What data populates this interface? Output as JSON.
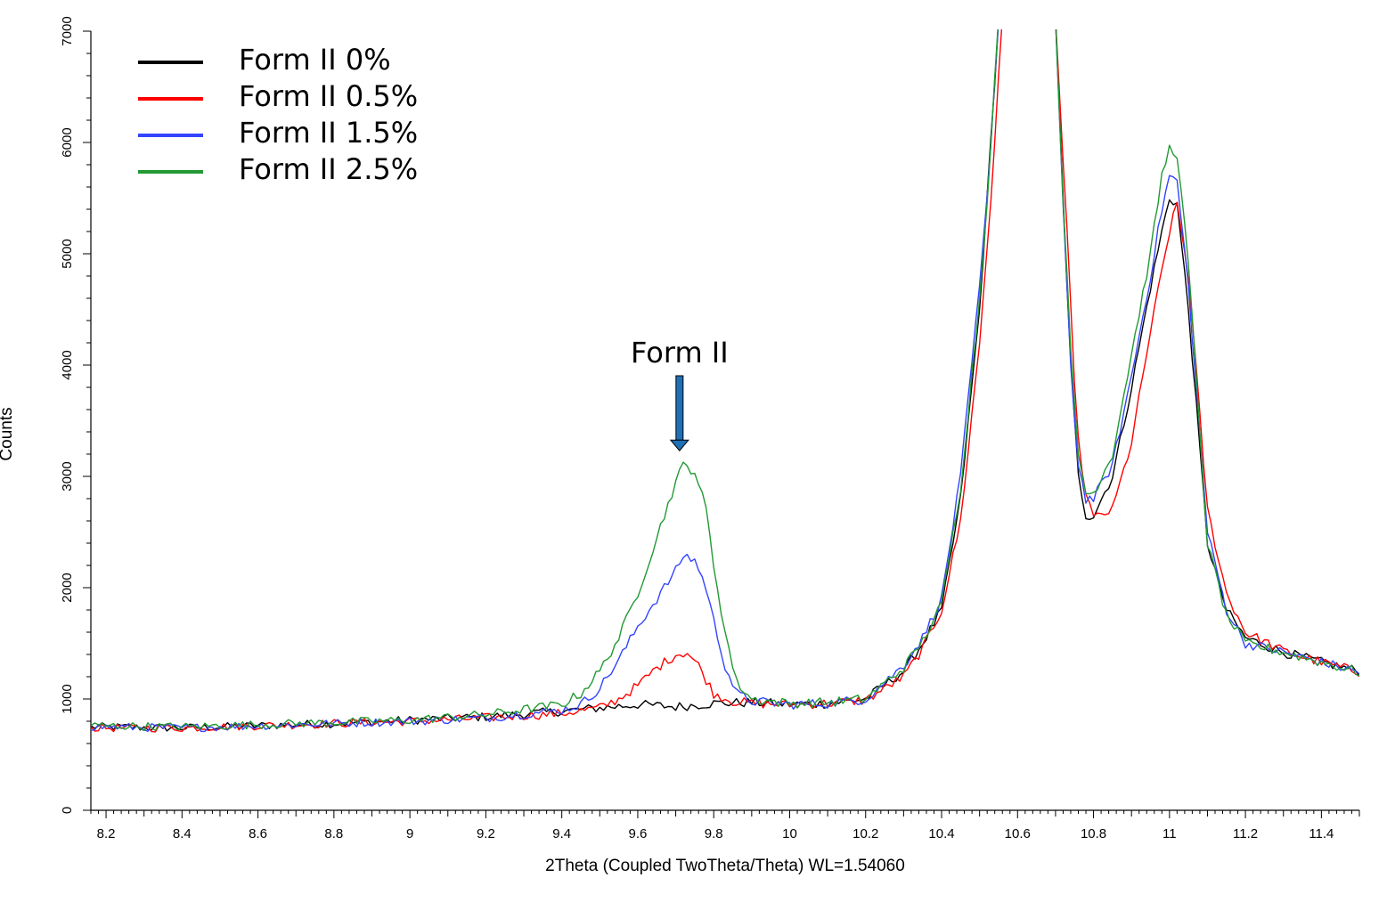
{
  "chart_data": {
    "type": "line",
    "xlabel": "2Theta (Coupled TwoTheta/Theta) WL=1.54060",
    "ylabel": "Counts",
    "xlim": [
      8.16,
      11.5
    ],
    "ylim": [
      0,
      7000
    ],
    "x_ticks": [
      8.2,
      8.4,
      8.6,
      8.8,
      9,
      9.2,
      9.4,
      9.6,
      9.8,
      10,
      10.2,
      10.4,
      10.6,
      10.8,
      11,
      11.2,
      11.4
    ],
    "y_ticks": [
      0,
      1000,
      2000,
      3000,
      4000,
      5000,
      6000,
      7000
    ],
    "grid": false,
    "legend_position": "top-left",
    "series": [
      {
        "name": "Form II 0%",
        "color": "#000000",
        "x": [
          8.16,
          8.4,
          8.8,
          9.0,
          9.2,
          9.4,
          9.5,
          9.6,
          9.7,
          9.8,
          9.9,
          10.0,
          10.1,
          10.2,
          10.3,
          10.35,
          10.4,
          10.45,
          10.5,
          10.52,
          10.55,
          10.6,
          10.65,
          10.7,
          10.72,
          10.74,
          10.76,
          10.78,
          10.8,
          10.85,
          10.9,
          10.95,
          10.98,
          11.0,
          11.02,
          11.05,
          11.1,
          11.15,
          11.2,
          11.3,
          11.4,
          11.5
        ],
        "y": [
          750,
          740,
          780,
          810,
          840,
          890,
          920,
          950,
          930,
          960,
          970,
          950,
          960,
          1000,
          1250,
          1500,
          1800,
          2800,
          4500,
          5500,
          7100,
          7100,
          7100,
          7100,
          5500,
          4000,
          3000,
          2650,
          2650,
          3000,
          3800,
          4700,
          5200,
          5500,
          5450,
          4500,
          2400,
          1800,
          1550,
          1420,
          1330,
          1250
        ]
      },
      {
        "name": "Form II 0.5%",
        "color": "#ff0000",
        "x": [
          8.16,
          8.4,
          8.8,
          9.0,
          9.2,
          9.4,
          9.5,
          9.55,
          9.6,
          9.65,
          9.7,
          9.73,
          9.76,
          9.8,
          9.85,
          9.9,
          10.0,
          10.1,
          10.2,
          10.3,
          10.35,
          10.4,
          10.45,
          10.5,
          10.53,
          10.56,
          10.6,
          10.65,
          10.7,
          10.73,
          10.75,
          10.77,
          10.8,
          10.85,
          10.9,
          10.95,
          11.0,
          11.02,
          11.05,
          11.1,
          11.15,
          11.2,
          11.3,
          11.4,
          11.5
        ],
        "y": [
          740,
          740,
          780,
          800,
          830,
          870,
          920,
          1000,
          1120,
          1280,
          1400,
          1420,
          1300,
          1050,
          980,
          960,
          950,
          960,
          990,
          1200,
          1450,
          1800,
          2600,
          4200,
          5500,
          7100,
          7100,
          7100,
          7100,
          5200,
          3800,
          3000,
          2620,
          2700,
          3300,
          4300,
          5200,
          5450,
          4800,
          2700,
          1950,
          1600,
          1430,
          1330,
          1240
        ]
      },
      {
        "name": "Form II 1.5%",
        "color": "#3344ff",
        "x": [
          8.16,
          8.4,
          8.8,
          9.0,
          9.2,
          9.4,
          9.45,
          9.5,
          9.55,
          9.6,
          9.65,
          9.7,
          9.72,
          9.75,
          9.78,
          9.8,
          9.83,
          9.86,
          9.9,
          10.0,
          10.1,
          10.2,
          10.3,
          10.35,
          10.4,
          10.45,
          10.5,
          10.52,
          10.55,
          10.6,
          10.65,
          10.7,
          10.72,
          10.74,
          10.76,
          10.78,
          10.8,
          10.85,
          10.9,
          10.95,
          10.98,
          11.0,
          11.02,
          11.05,
          11.1,
          11.15,
          11.2,
          11.3,
          11.4,
          11.5
        ],
        "y": [
          750,
          740,
          780,
          800,
          830,
          900,
          950,
          1100,
          1350,
          1650,
          1900,
          2150,
          2290,
          2250,
          2000,
          1700,
          1300,
          1050,
          980,
          950,
          960,
          1000,
          1300,
          1550,
          1900,
          3000,
          4700,
          5500,
          7100,
          7100,
          7100,
          7100,
          5400,
          4000,
          3100,
          2800,
          2800,
          3100,
          3900,
          4800,
          5400,
          5700,
          5650,
          4700,
          2500,
          1800,
          1500,
          1420,
          1330,
          1240
        ]
      },
      {
        "name": "Form II 2.5%",
        "color": "#229933",
        "x": [
          8.16,
          8.4,
          8.8,
          9.0,
          9.2,
          9.4,
          9.45,
          9.5,
          9.55,
          9.6,
          9.65,
          9.68,
          9.7,
          9.72,
          9.75,
          9.78,
          9.8,
          9.83,
          9.86,
          9.9,
          10.0,
          10.1,
          10.2,
          10.3,
          10.35,
          10.4,
          10.45,
          10.5,
          10.52,
          10.55,
          10.6,
          10.65,
          10.7,
          10.72,
          10.74,
          10.76,
          10.78,
          10.8,
          10.85,
          10.9,
          10.95,
          10.98,
          11.0,
          11.02,
          11.05,
          11.1,
          11.15,
          11.2,
          11.3,
          11.4,
          11.5
        ],
        "y": [
          760,
          750,
          790,
          810,
          860,
          950,
          1050,
          1250,
          1550,
          1950,
          2450,
          2750,
          2950,
          3100,
          3050,
          2700,
          2200,
          1600,
          1150,
          1000,
          960,
          970,
          1000,
          1280,
          1520,
          1850,
          2900,
          4600,
          5500,
          7100,
          7100,
          7100,
          7100,
          5500,
          4100,
          3200,
          2850,
          2850,
          3200,
          4100,
          5000,
          5700,
          5950,
          5900,
          4900,
          2400,
          1750,
          1500,
          1420,
          1330,
          1240
        ]
      }
    ],
    "annotations": [
      {
        "text": "Form II",
        "x": 9.71,
        "y": 3230,
        "arrow": "down",
        "arrow_color": "#1f6fb4"
      }
    ]
  }
}
